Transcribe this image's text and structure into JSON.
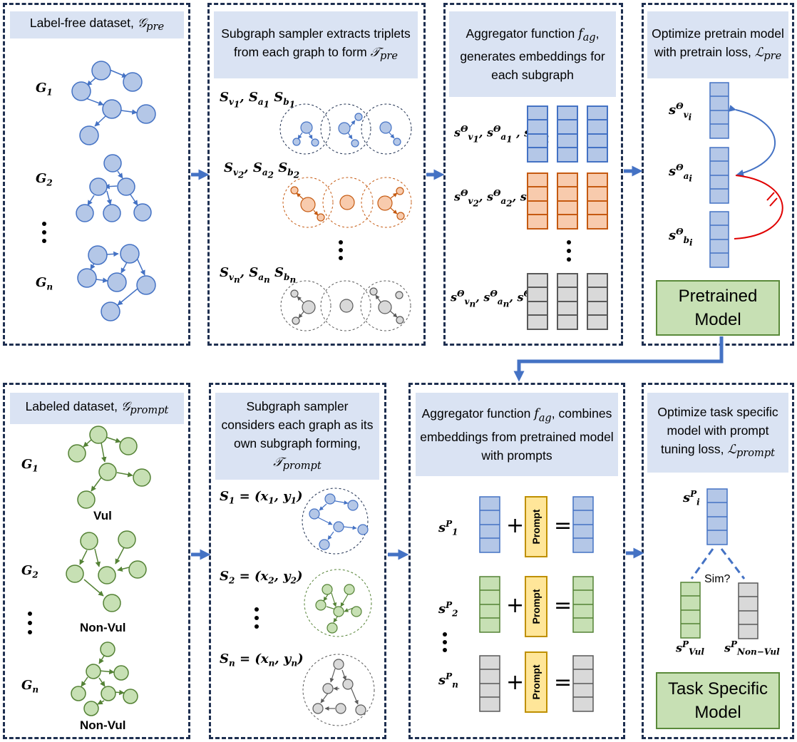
{
  "top_row": {
    "p1": {
      "title": "Label-free dataset, ",
      "title_math": "𝒢",
      "title_sub": "pre",
      "graphs": [
        "G",
        "G",
        "G"
      ],
      "graph_subs": [
        "1",
        "2",
        "n"
      ]
    },
    "p2": {
      "title_a": "Subgraph sampler extracts triplets from each graph to form ",
      "title_math": "𝒯",
      "title_sub": "pre"
    },
    "p3": {
      "title_a": "Aggregator function ",
      "title_math": "f",
      "title_sub": "ag",
      "title_b": ", generates embeddings for each subgraph"
    },
    "p4": {
      "title_a": "Optimize pretrain model with pretrain loss, ",
      "title_math": "ℒ",
      "title_sub": "pre",
      "result_label": "Pretrained Model"
    }
  },
  "bottom_row": {
    "p1": {
      "title": "Labeled dataset, ",
      "title_math": "𝒢",
      "title_sub": "prompt",
      "class_labels": [
        "Vul",
        "Non-Vul",
        "Non-Vul"
      ]
    },
    "p2": {
      "title_a": "Subgraph sampler considers each graph as its own subgraph forming, ",
      "title_math": "𝒯",
      "title_sub": "prompt"
    },
    "p3": {
      "title_a": "Aggregator function ",
      "title_math": "f",
      "title_sub": "ag",
      "title_b": ", combines embeddings from pretrained model with prompts",
      "prompt_label": "Prompt",
      "plus": "+",
      "equals": "="
    },
    "p4": {
      "title_a": "Optimize task specific model with prompt tuning loss, ",
      "title_math": "ℒ",
      "title_sub": "prompt",
      "sim_label": "Sim?",
      "result_label": "Task Specific Model"
    }
  },
  "colors": {
    "blue": "#b4c7e7",
    "blue_stroke": "#4472c4",
    "orange": "#f8cbad",
    "orange_stroke": "#c55a11",
    "green": "#c7e0b4",
    "green_stroke": "#548235",
    "gray": "#d9d9d9",
    "gray_stroke": "#595959",
    "arrow": "#4472c4",
    "header": "#dae3f3"
  }
}
